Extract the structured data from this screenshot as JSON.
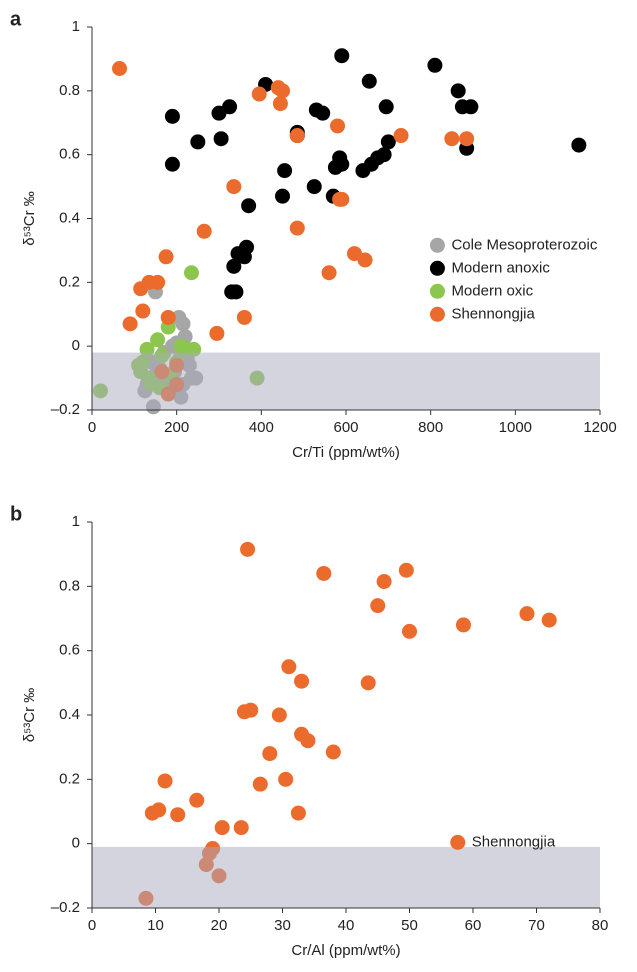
{
  "chart_data": [
    {
      "type": "scatter",
      "panel_label": "a",
      "x_label": "Cr/Ti (ppm/wt%)",
      "y_label": "δ⁵³Cr ‰",
      "xlim": [
        0,
        1200
      ],
      "xticks": [
        0,
        200,
        400,
        600,
        800,
        1000,
        1200
      ],
      "ylim": [
        -0.2,
        1
      ],
      "yticks": [
        {
          "value": -0.2,
          "label": "–0.2"
        },
        0,
        0.2,
        0.4,
        0.6,
        0.8,
        1
      ],
      "legend": "center-right",
      "shaded_band": {
        "ylim": [
          -0.2,
          -0.02
        ],
        "color": "#aaaabf",
        "opacity": 0.5
      },
      "series": [
        {
          "name": "Cole Mesoproterozoic",
          "color": "#a6a6a6",
          "x": [
            150,
            145,
            125,
            130,
            160,
            170,
            190,
            200,
            205,
            215,
            220,
            225,
            230,
            235,
            210,
            200,
            185,
            175,
            150,
            140,
            210,
            195,
            245,
            215
          ],
          "values": [
            0.17,
            -0.19,
            -0.14,
            -0.12,
            -0.07,
            -0.02,
            0.0,
            0.01,
            0.09,
            0.07,
            0.03,
            -0.04,
            -0.06,
            -0.1,
            -0.16,
            -0.14,
            -0.12,
            -0.1,
            -0.09,
            -0.05,
            -0.03,
            -0.08,
            -0.1,
            -0.12
          ]
        },
        {
          "name": "Modern anoxic",
          "color": "#000000",
          "x": [
            190,
            190,
            250,
            300,
            305,
            325,
            330,
            335,
            340,
            345,
            360,
            365,
            370,
            410,
            450,
            455,
            485,
            485,
            530,
            545,
            525,
            570,
            575,
            585,
            590,
            590,
            640,
            655,
            660,
            675,
            690,
            695,
            700,
            810,
            865,
            875,
            895,
            885,
            1150
          ],
          "values": [
            0.72,
            0.57,
            0.64,
            0.73,
            0.65,
            0.75,
            0.17,
            0.25,
            0.17,
            0.29,
            0.28,
            0.31,
            0.44,
            0.82,
            0.47,
            0.55,
            0.67,
            0.66,
            0.74,
            0.73,
            0.5,
            0.47,
            0.56,
            0.59,
            0.57,
            0.91,
            0.55,
            0.83,
            0.57,
            0.59,
            0.6,
            0.75,
            0.64,
            0.88,
            0.8,
            0.75,
            0.75,
            0.62,
            0.63
          ]
        },
        {
          "name": "Modern oxic",
          "color": "#8cc64e",
          "x": [
            20,
            115,
            120,
            130,
            135,
            140,
            155,
            165,
            180,
            185,
            200,
            210,
            225,
            235,
            240,
            390,
            160,
            110
          ],
          "values": [
            -0.14,
            -0.08,
            -0.05,
            -0.01,
            -0.1,
            -0.12,
            0.02,
            -0.03,
            0.06,
            -0.09,
            -0.05,
            0.0,
            -0.01,
            0.23,
            -0.01,
            -0.1,
            -0.13,
            -0.06
          ]
        },
        {
          "name": "Shennongjia",
          "color": "#ea6b2b",
          "x": [
            65,
            90,
            115,
            120,
            135,
            155,
            175,
            180,
            165,
            180,
            200,
            200,
            295,
            265,
            335,
            360,
            395,
            440,
            445,
            450,
            485,
            485,
            560,
            580,
            590,
            585,
            620,
            645,
            730,
            850,
            885
          ],
          "values": [
            0.87,
            0.07,
            0.18,
            0.11,
            0.2,
            0.2,
            0.28,
            0.09,
            -0.08,
            -0.15,
            -0.06,
            -0.12,
            0.04,
            0.36,
            0.5,
            0.09,
            0.79,
            0.81,
            0.76,
            0.8,
            0.37,
            0.66,
            0.23,
            0.69,
            0.46,
            0.46,
            0.29,
            0.27,
            0.66,
            0.65,
            0.65
          ]
        }
      ]
    },
    {
      "type": "scatter",
      "panel_label": "b",
      "x_label": "Cr/Al (ppm/wt%)",
      "y_label": "δ⁵³Cr ‰",
      "xlim": [
        0,
        80
      ],
      "xticks": [
        0,
        10,
        20,
        30,
        40,
        50,
        60,
        70,
        80
      ],
      "ylim": [
        -0.2,
        1
      ],
      "yticks": [
        {
          "value": -0.2,
          "label": "–0.2"
        },
        0,
        0.2,
        0.4,
        0.6,
        0.8,
        1
      ],
      "legend": "lower-right",
      "shaded_band": {
        "ylim": [
          -0.2,
          -0.01
        ],
        "color": "#aaaabf",
        "opacity": 0.5
      },
      "series": [
        {
          "name": "Shennongjia",
          "color": "#ea6b2b",
          "x": [
            8.5,
            9.5,
            10.5,
            11.5,
            13.5,
            16.5,
            18,
            18.5,
            19,
            20,
            20.5,
            23.5,
            24,
            24.5,
            25,
            26.5,
            28,
            29.5,
            30.5,
            31,
            32.5,
            33,
            33,
            34,
            36.5,
            38,
            43.5,
            45,
            46,
            49.5,
            50,
            58.5,
            68.5,
            72
          ],
          "values": [
            -0.17,
            0.095,
            0.105,
            0.195,
            0.09,
            0.135,
            -0.065,
            -0.03,
            -0.015,
            -0.1,
            0.05,
            0.05,
            0.41,
            0.915,
            0.415,
            0.185,
            0.28,
            0.4,
            0.2,
            0.55,
            0.095,
            0.505,
            0.34,
            0.32,
            0.84,
            0.285,
            0.5,
            0.74,
            0.815,
            0.85,
            0.66,
            0.68,
            0.715,
            0.695
          ]
        }
      ]
    }
  ]
}
